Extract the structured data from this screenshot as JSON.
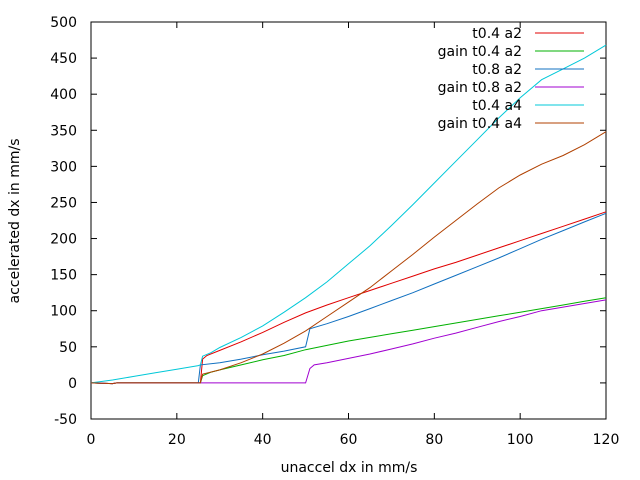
{
  "chart_data": {
    "type": "line",
    "title": "",
    "xlabel": "unaccel dx in mm/s",
    "ylabel": "accelerated dx in mm/s",
    "xlim": [
      0,
      120
    ],
    "ylim": [
      -50,
      500
    ],
    "x_ticks": [
      0,
      20,
      40,
      60,
      80,
      100,
      120
    ],
    "y_ticks": [
      -50,
      0,
      50,
      100,
      150,
      200,
      250,
      300,
      350,
      400,
      450,
      500
    ],
    "grid": false,
    "legend_position": "top-right",
    "series": [
      {
        "name": "t0.4 a2",
        "color": "#e00000",
        "points": [
          [
            0,
            0
          ],
          [
            5,
            -1
          ],
          [
            6,
            0
          ],
          [
            10,
            0
          ],
          [
            20,
            0
          ],
          [
            25.5,
            0
          ],
          [
            26,
            33
          ],
          [
            27,
            38
          ],
          [
            30,
            45
          ],
          [
            35,
            57
          ],
          [
            40,
            70
          ],
          [
            45,
            84
          ],
          [
            50,
            97
          ],
          [
            55,
            108
          ],
          [
            60,
            118
          ],
          [
            65,
            128
          ],
          [
            70,
            138
          ],
          [
            75,
            148
          ],
          [
            80,
            158
          ],
          [
            85,
            167
          ],
          [
            90,
            177
          ],
          [
            95,
            187
          ],
          [
            100,
            197
          ],
          [
            105,
            207
          ],
          [
            110,
            217
          ],
          [
            115,
            227
          ],
          [
            120,
            237
          ]
        ]
      },
      {
        "name": "gain t0.4 a2",
        "color": "#00b000",
        "points": [
          [
            0,
            0
          ],
          [
            5,
            -1
          ],
          [
            6,
            0
          ],
          [
            10,
            0
          ],
          [
            20,
            0
          ],
          [
            25.5,
            0
          ],
          [
            26,
            10
          ],
          [
            28,
            15
          ],
          [
            30,
            18
          ],
          [
            35,
            25
          ],
          [
            40,
            32
          ],
          [
            45,
            38
          ],
          [
            50,
            46
          ],
          [
            55,
            52
          ],
          [
            60,
            58
          ],
          [
            65,
            63
          ],
          [
            70,
            68
          ],
          [
            75,
            73
          ],
          [
            80,
            78
          ],
          [
            85,
            83
          ],
          [
            90,
            88
          ],
          [
            95,
            93
          ],
          [
            100,
            98
          ],
          [
            105,
            103
          ],
          [
            110,
            108
          ],
          [
            115,
            113
          ],
          [
            120,
            118
          ]
        ]
      },
      {
        "name": "t0.8 a2",
        "color": "#1070c0",
        "points": [
          [
            0,
            0
          ],
          [
            5,
            -1
          ],
          [
            6,
            0
          ],
          [
            10,
            0
          ],
          [
            20,
            0
          ],
          [
            25,
            0
          ],
          [
            25.5,
            25
          ],
          [
            30,
            28
          ],
          [
            35,
            33
          ],
          [
            40,
            39
          ],
          [
            45,
            44
          ],
          [
            50,
            50
          ],
          [
            51,
            75
          ],
          [
            55,
            82
          ],
          [
            60,
            92
          ],
          [
            65,
            103
          ],
          [
            70,
            114
          ],
          [
            75,
            125
          ],
          [
            80,
            137
          ],
          [
            85,
            149
          ],
          [
            90,
            161
          ],
          [
            95,
            173
          ],
          [
            100,
            186
          ],
          [
            105,
            199
          ],
          [
            110,
            211
          ],
          [
            115,
            223
          ],
          [
            120,
            235
          ]
        ]
      },
      {
        "name": "gain t0.8 a2",
        "color": "#a000d0",
        "points": [
          [
            0,
            0
          ],
          [
            5,
            -1
          ],
          [
            6,
            0
          ],
          [
            10,
            0
          ],
          [
            20,
            0
          ],
          [
            30,
            0
          ],
          [
            40,
            0
          ],
          [
            50,
            0
          ],
          [
            51,
            20
          ],
          [
            52,
            25
          ],
          [
            55,
            28
          ],
          [
            60,
            34
          ],
          [
            65,
            40
          ],
          [
            70,
            47
          ],
          [
            75,
            54
          ],
          [
            80,
            62
          ],
          [
            85,
            69
          ],
          [
            90,
            77
          ],
          [
            95,
            85
          ],
          [
            100,
            92
          ],
          [
            105,
            100
          ],
          [
            110,
            105
          ],
          [
            115,
            110
          ],
          [
            120,
            115
          ]
        ]
      },
      {
        "name": "t0.4 a4",
        "color": "#00c8d8",
        "points": [
          [
            0,
            0
          ],
          [
            5,
            4
          ],
          [
            10,
            9
          ],
          [
            15,
            14
          ],
          [
            20,
            19
          ],
          [
            25,
            24
          ],
          [
            25.5,
            25
          ],
          [
            26,
            37
          ],
          [
            28,
            42
          ],
          [
            30,
            49
          ],
          [
            35,
            63
          ],
          [
            40,
            79
          ],
          [
            45,
            98
          ],
          [
            50,
            118
          ],
          [
            55,
            140
          ],
          [
            60,
            165
          ],
          [
            65,
            190
          ],
          [
            70,
            218
          ],
          [
            75,
            247
          ],
          [
            80,
            277
          ],
          [
            85,
            307
          ],
          [
            90,
            337
          ],
          [
            95,
            367
          ],
          [
            100,
            395
          ],
          [
            105,
            420
          ],
          [
            110,
            435
          ],
          [
            115,
            450
          ],
          [
            120,
            468
          ]
        ]
      },
      {
        "name": "gain t0.4 a4",
        "color": "#b04000",
        "points": [
          [
            0,
            0
          ],
          [
            5,
            -1
          ],
          [
            6,
            0
          ],
          [
            10,
            0
          ],
          [
            20,
            0
          ],
          [
            25.5,
            0
          ],
          [
            26,
            12
          ],
          [
            30,
            18
          ],
          [
            35,
            28
          ],
          [
            40,
            40
          ],
          [
            45,
            55
          ],
          [
            50,
            72
          ],
          [
            55,
            92
          ],
          [
            60,
            112
          ],
          [
            65,
            132
          ],
          [
            70,
            155
          ],
          [
            75,
            178
          ],
          [
            80,
            202
          ],
          [
            85,
            225
          ],
          [
            90,
            248
          ],
          [
            95,
            270
          ],
          [
            100,
            288
          ],
          [
            105,
            303
          ],
          [
            110,
            315
          ],
          [
            115,
            330
          ],
          [
            120,
            348
          ]
        ]
      }
    ]
  }
}
